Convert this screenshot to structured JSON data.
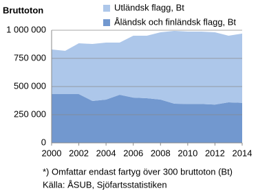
{
  "chart_data": {
    "type": "stacked_area",
    "title": "Bruttoton",
    "x": [
      2000,
      2001,
      2002,
      2003,
      2004,
      2005,
      2006,
      2007,
      2008,
      2009,
      2010,
      2011,
      2012,
      2013,
      2014
    ],
    "series": [
      {
        "name": "Åländsk och finländsk flagg, Bt",
        "color": "#7298cf",
        "values": [
          433000,
          433000,
          433000,
          372000,
          384000,
          427000,
          402000,
          396000,
          384000,
          348000,
          345000,
          345000,
          340000,
          360000,
          355000
        ]
      },
      {
        "name": "Utländsk flagg, Bt",
        "color": "#adc7ea",
        "values": [
          396000,
          384000,
          451000,
          506000,
          506000,
          463000,
          549000,
          555000,
          598000,
          646000,
          643000,
          643000,
          642000,
          591000,
          615000
        ]
      }
    ],
    "xlim": [
      2000,
      2014
    ],
    "xticks": [
      2000,
      2002,
      2004,
      2006,
      2008,
      2010,
      2012,
      2014
    ],
    "ylim": [
      0,
      1000000
    ],
    "yticks": [
      0,
      {
        "value": 250000,
        "label": "250 000"
      },
      {
        "value": 500000,
        "label": "500 000"
      },
      {
        "value": 750000,
        "label": "750 000"
      },
      {
        "value": 1000000,
        "label": "1 000 000"
      }
    ],
    "grid": true,
    "notes": [
      "*) Omfattar endast fartyg över 300 bruttoton (Bt)",
      "Källa: ÅSUB, Sjöfartsstatistiken"
    ]
  }
}
